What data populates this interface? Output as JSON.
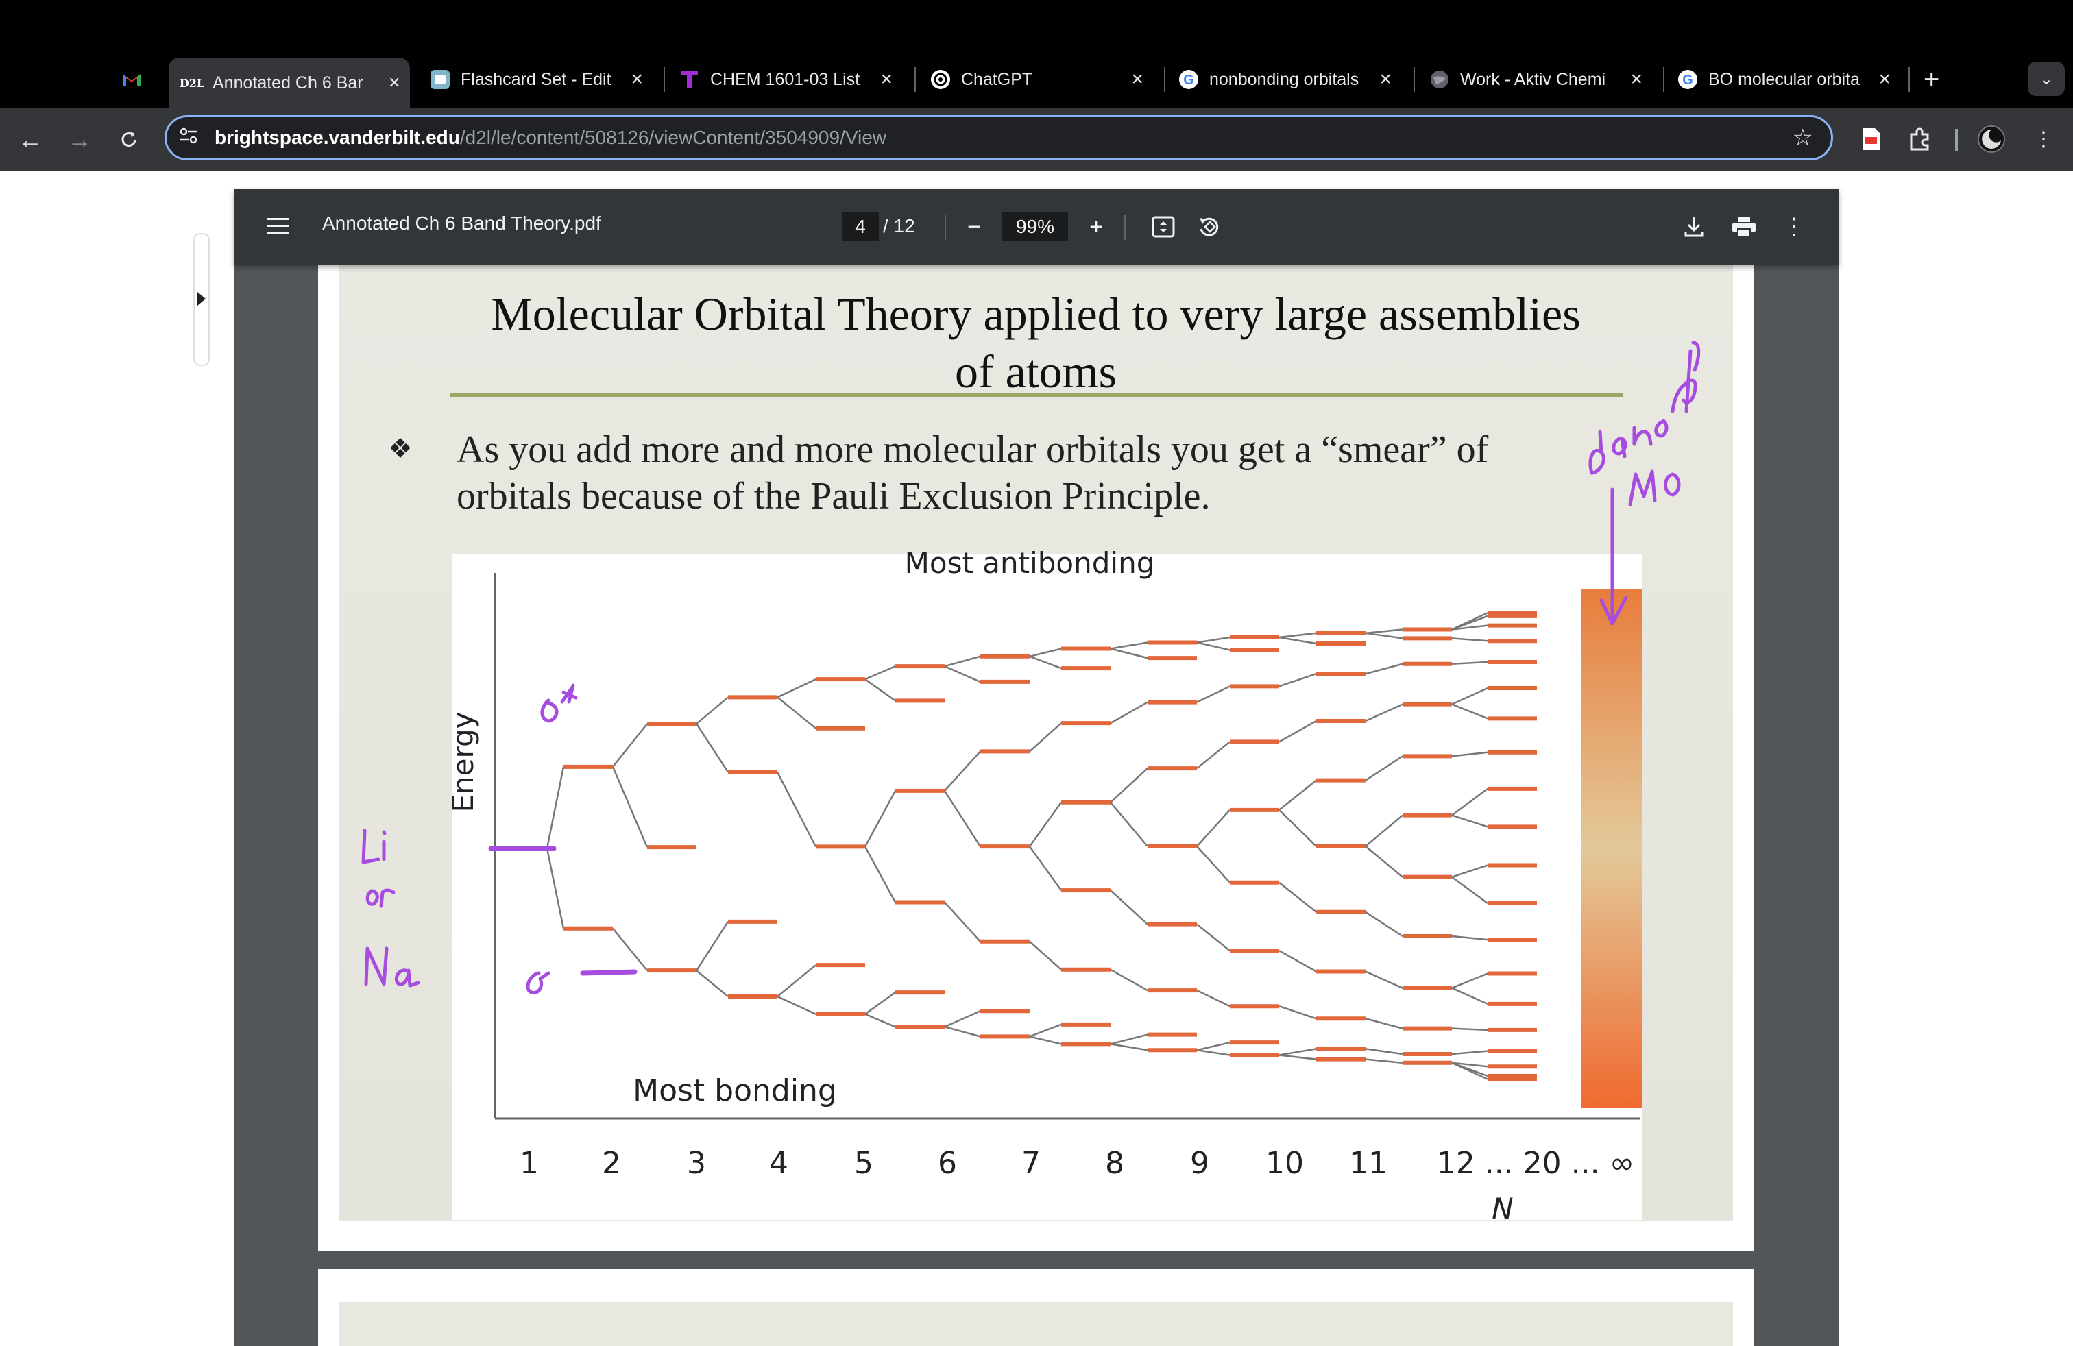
{
  "browser": {
    "tabs": [
      {
        "favicon": "gmail-icon",
        "title": "",
        "active": false
      },
      {
        "favicon": "d2l-icon",
        "fav_text": "D2L",
        "title": "Annotated Ch 6 Bar",
        "active": true
      },
      {
        "favicon": "quizlet-icon",
        "title": "Flashcard Set - Edit",
        "active": false
      },
      {
        "favicon": "t-icon",
        "title": "CHEM 1601-03 List",
        "active": false
      },
      {
        "favicon": "chatgpt-icon",
        "title": "ChatGPT",
        "active": false
      },
      {
        "favicon": "google-icon",
        "title": "nonbonding orbitals",
        "active": false
      },
      {
        "favicon": "globe-icon",
        "title": "Work - Aktiv Chemi",
        "active": false
      },
      {
        "favicon": "google-icon",
        "title": "BO molecular orbita",
        "active": false
      }
    ],
    "url_host": "brightspace.vanderbilt.edu",
    "url_path": "/d2l/le/content/508126/viewContent/3504909/View"
  },
  "pdf": {
    "filename": "Annotated Ch 6 Band Theory.pdf",
    "page_current": "4",
    "page_total": "/ 12",
    "zoom": "99%"
  },
  "slide": {
    "title_line1": "Molecular Orbital Theory applied to very large assemblies",
    "title_line2": "of atoms",
    "bullet_symbol": "❖",
    "bullet_text": "As you add more and more molecular orbitals you get a “smear” of orbitals because of the Pauli Exclusion Principle."
  },
  "chart_data": {
    "type": "diagram",
    "title": "Most antibonding",
    "bottom_label": "Most bonding",
    "ylabel": "Energy",
    "xlabel": "N",
    "tick_labels": [
      "1",
      "2",
      "3",
      "4",
      "5",
      "6",
      "7",
      "8",
      "9",
      "10",
      "11",
      "12 ... 20 ... ∞"
    ],
    "levels_per_column": [
      1,
      2,
      3,
      4,
      5,
      6,
      7,
      8,
      9,
      10,
      11,
      12,
      20
    ],
    "band": "continuous band at N = ∞",
    "colors": {
      "level": "#e2673a",
      "line": "#777777",
      "band_top": "#e87d3c",
      "band_mid": "#e3c99a",
      "band_bottom": "#ef6a2f"
    }
  },
  "annotations": {
    "ink_color": "#a64de0",
    "sigma_star": "σ*",
    "sigma": "σ",
    "atom_label": "Li or Na",
    "band_note": "band of MO"
  }
}
